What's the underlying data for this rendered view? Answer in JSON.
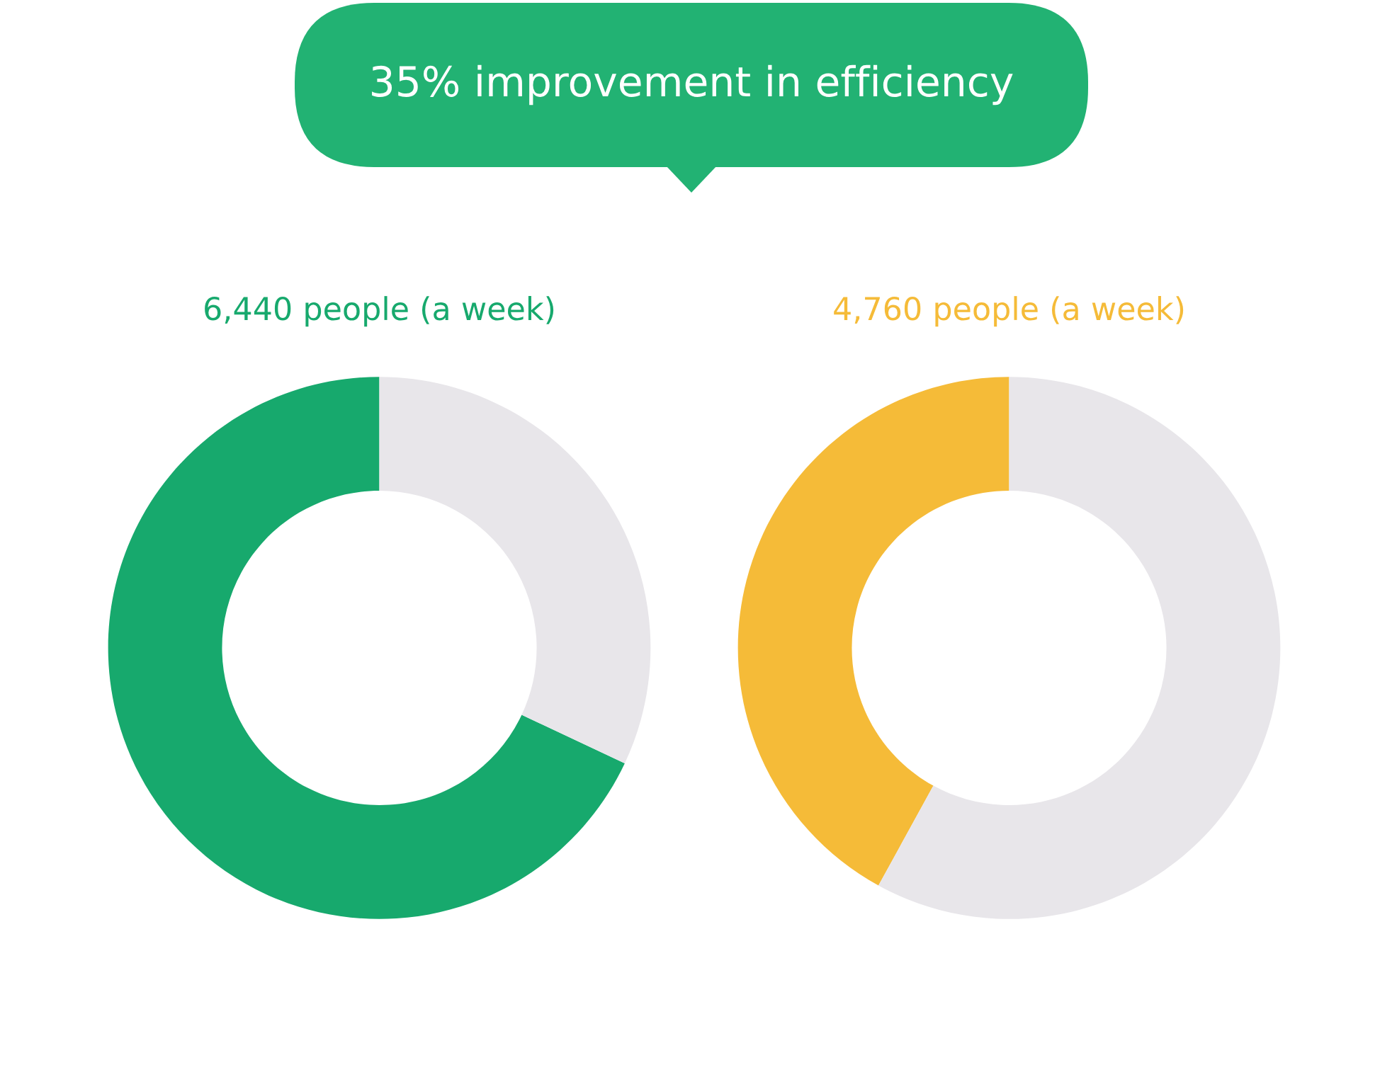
{
  "chart_data": [
    {
      "type": "other",
      "title": "35% improvement in efficiency"
    },
    {
      "type": "donut",
      "title": "6,440 people (a week)",
      "categories": [
        null,
        null
      ],
      "values": [
        68,
        32
      ],
      "colors": [
        "#17a96d",
        "#e8e6ea"
      ]
    },
    {
      "type": "donut",
      "title": "4,760 people (a week)",
      "categories": [
        null,
        null
      ],
      "values": [
        42,
        58
      ],
      "colors": [
        "#f5bb38",
        "#e8e6ea"
      ]
    }
  ]
}
